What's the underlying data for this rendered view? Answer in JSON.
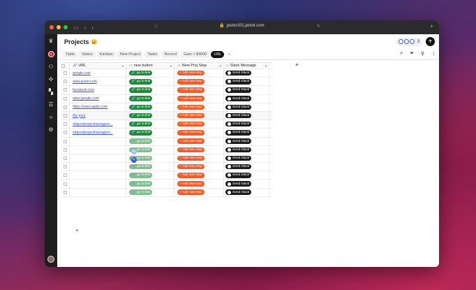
{
  "browser": {
    "url": "jestor101.jestor.com",
    "lock_icon": "lock-icon"
  },
  "project": {
    "title": "Projects",
    "emoji": "😀",
    "collaborator_count": "3"
  },
  "tabs": [
    "Table",
    "Status",
    "Kanban",
    "New Project",
    "Tasks",
    "Record",
    "Gain > $4000",
    "URL"
  ],
  "active_tab": "URL",
  "columns": {
    "url": "URL",
    "button": "new button",
    "step": "New Proj Step",
    "slack": "Slack Message"
  },
  "button_labels": {
    "go": "go to link",
    "step": "+ Add new step",
    "slack": "Send Slack"
  },
  "rows": [
    "google.com",
    "www.jestor.com",
    "facebook.com",
    "www.google.com",
    "https://www.apple.com",
    "/for-you/",
    "/object/projectmanagem...",
    "/object/projectmanagem...",
    "",
    "",
    "",
    "",
    "",
    "",
    ""
  ],
  "colors": {
    "green": "#1f8a3b",
    "orange": "#f25b2a",
    "black": "#1c1c1c"
  }
}
